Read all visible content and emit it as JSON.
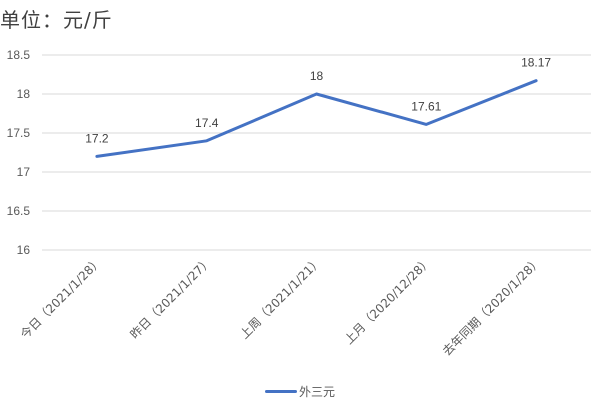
{
  "unit_label": "单位：元/斤",
  "chart_data": {
    "type": "line",
    "title": "",
    "unit": "单位：元/斤",
    "xlabel": "",
    "ylabel": "",
    "categories": [
      "今日（2021/1/28）",
      "昨日（2021/1/27）",
      "上周（2021/1/21）",
      "上月（2020/12/28）",
      "去年同期（2020/1/28）"
    ],
    "series": [
      {
        "name": "外三元",
        "values": [
          17.2,
          17.4,
          18,
          17.61,
          18.17
        ],
        "color": "#4472C4"
      }
    ],
    "data_labels": [
      "17.2",
      "17.4",
      "18",
      "17.61",
      "18.17"
    ],
    "ylim": [
      16,
      18.5
    ],
    "yticks": [
      "16",
      "16.5",
      "17",
      "17.5",
      "18",
      "18.5"
    ],
    "grid": true,
    "legend_position": "bottom"
  },
  "legend": {
    "label": "外三元"
  }
}
